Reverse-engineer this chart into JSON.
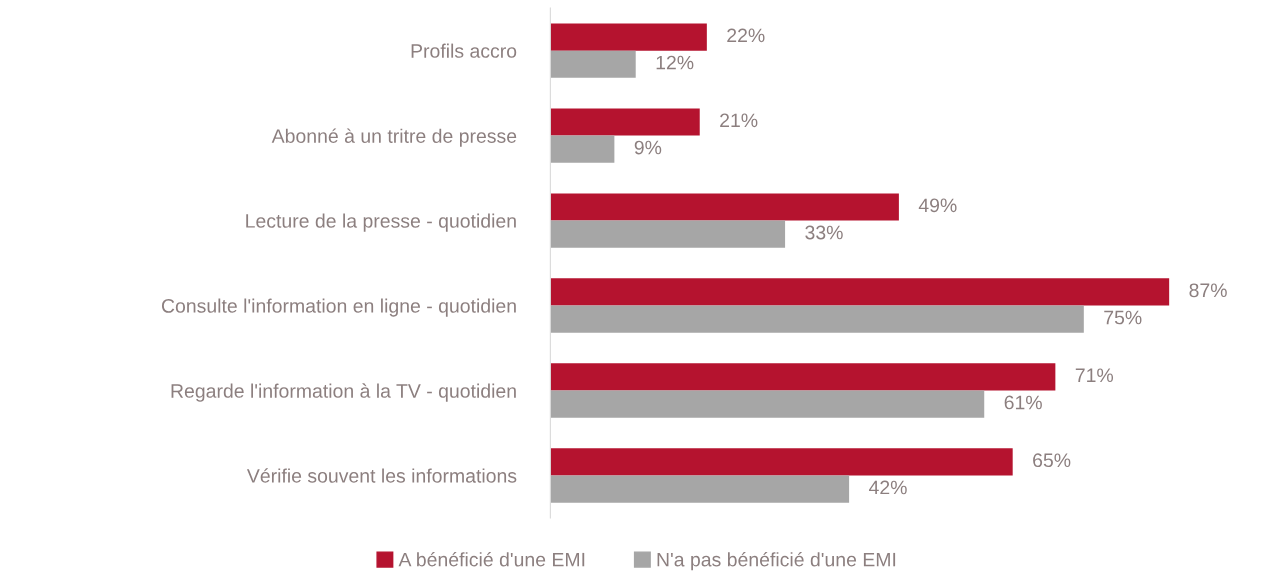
{
  "chart_data": {
    "type": "bar",
    "orientation": "horizontal",
    "categories": [
      "Profils accro",
      "Abonné à un tritre de presse",
      "Lecture de la presse - quotidien",
      "Consulte l'information en ligne - quotidien",
      "Regarde l'information à la TV - quotidien",
      "Vérifie souvent les informations"
    ],
    "series": [
      {
        "name": "A bénéficié d'une EMI",
        "color": "#b5132f",
        "values": [
          22,
          21,
          49,
          87,
          71,
          65
        ],
        "value_labels": [
          "22%",
          "21%",
          "49%",
          "87%",
          "71%",
          "65%"
        ]
      },
      {
        "name": "N'a pas bénéficié d'une EMI",
        "color": "#a6a6a6",
        "values": [
          12,
          9,
          33,
          75,
          61,
          42
        ],
        "value_labels": [
          "12%",
          "9%",
          "33%",
          "75%",
          "61%",
          "42%"
        ]
      }
    ],
    "legend": "bottom",
    "grid": false
  }
}
